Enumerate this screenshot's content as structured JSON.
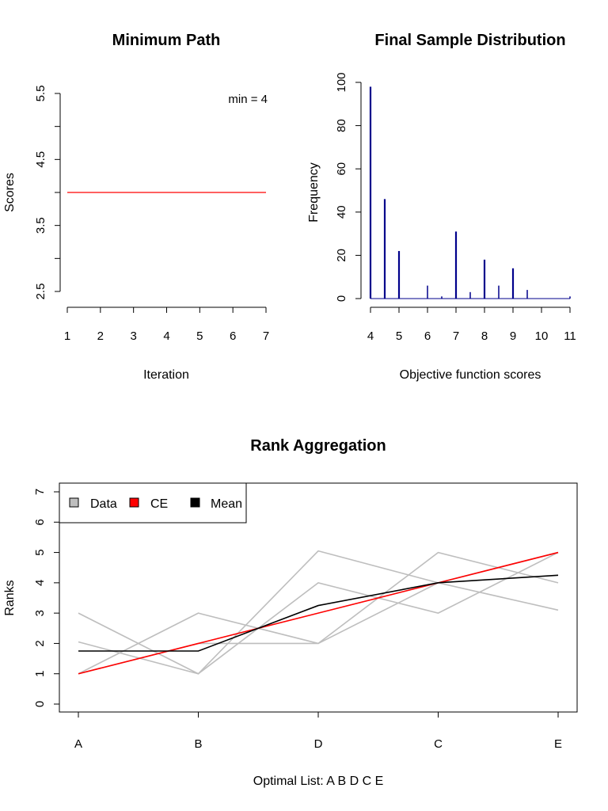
{
  "colors": {
    "background": "#ffffff",
    "axis": "#000000",
    "min_path_line": "#ff0000",
    "histogram_bars": "#00008b",
    "data_lines": "#bebebe",
    "ce_line": "#ff0000",
    "mean_line": "#000000"
  },
  "chart_data": [
    {
      "type": "line",
      "title": "Minimum Path",
      "xlabel": "Iteration",
      "ylabel": "Scores",
      "annotation": "min = 4",
      "x": [
        1,
        2,
        3,
        4,
        5,
        6,
        7
      ],
      "xlim": [
        1,
        7
      ],
      "ylim": [
        2.5,
        5.5
      ],
      "x_ticks": [
        "1",
        "2",
        "3",
        "4",
        "5",
        "6",
        "7"
      ],
      "y_ticks": [
        "2.5",
        "3",
        "3.5",
        "4",
        "4.5",
        "5",
        "5.5"
      ],
      "y_tick_labels_shown": [
        "2.5",
        "3.5",
        "4.5",
        "5.5"
      ],
      "series": [
        {
          "values": [
            4,
            4,
            4,
            4,
            4,
            4,
            4
          ],
          "color": "#ff0000"
        }
      ],
      "grid": false
    },
    {
      "type": "bar",
      "title": "Final Sample Distribution",
      "xlabel": "Objective function scores",
      "ylabel": "Frequency",
      "xlim": [
        4,
        11
      ],
      "ylim": [
        0,
        100
      ],
      "x_ticks": [
        "4",
        "5",
        "6",
        "7",
        "8",
        "9",
        "10",
        "11"
      ],
      "y_ticks": [
        "0",
        "20",
        "40",
        "60",
        "80",
        "100"
      ],
      "categories": [
        "4",
        "4.5",
        "5",
        "6",
        "6.5",
        "7",
        "7.5",
        "8",
        "8.5",
        "9",
        "9.5",
        "11"
      ],
      "values": [
        98,
        46,
        22,
        6,
        1,
        31,
        3,
        18,
        6,
        14,
        4,
        1
      ],
      "color": "#00008b",
      "grid": false
    },
    {
      "type": "line",
      "title": "Rank Aggregation",
      "xlabel": "Optimal List: A B D C E",
      "ylabel": "Ranks",
      "categories": [
        "A",
        "B",
        "D",
        "C",
        "E"
      ],
      "ylim": [
        0,
        7
      ],
      "y_ticks": [
        "0",
        "1",
        "2",
        "3",
        "4",
        "5",
        "6",
        "7"
      ],
      "legend": {
        "position": "top-left",
        "entries": [
          {
            "label": "Data",
            "color": "#bebebe"
          },
          {
            "label": "CE",
            "color": "#ff0000"
          },
          {
            "label": "Mean",
            "color": "#000000"
          }
        ]
      },
      "data_series": [
        [
          3,
          1,
          5.05,
          4,
          3.1
        ],
        [
          2.05,
          1,
          4,
          3,
          5
        ],
        [
          1,
          3,
          2,
          5,
          4
        ],
        [
          1,
          2,
          2,
          4,
          5
        ]
      ],
      "series": [
        {
          "name": "CE",
          "values": [
            1,
            2,
            3,
            4,
            5
          ],
          "color": "#ff0000"
        },
        {
          "name": "Mean",
          "values": [
            1.75,
            1.75,
            3.25,
            4,
            4.25
          ],
          "color": "#000000"
        }
      ],
      "grid": false
    }
  ]
}
